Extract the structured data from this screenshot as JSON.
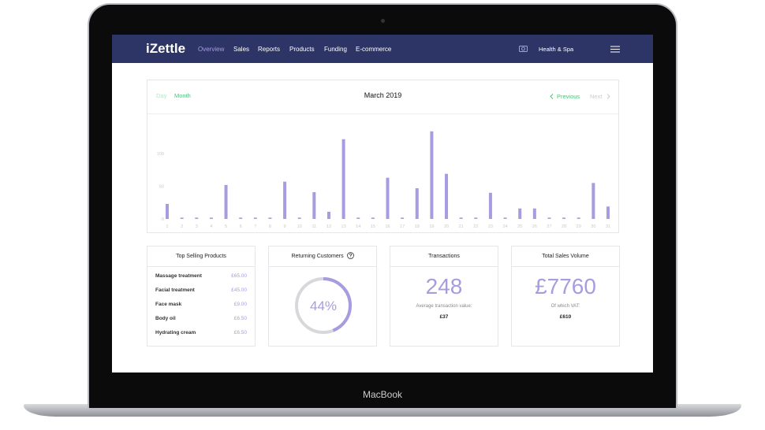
{
  "device": {
    "label": "MacBook"
  },
  "nav": {
    "logo": "iZettle",
    "items": [
      "Overview",
      "Sales",
      "Reports",
      "Products",
      "Funding",
      "E-commerce"
    ],
    "account": "Health & Spa"
  },
  "period": {
    "day": "Day",
    "month": "Month",
    "previous": "Previous",
    "next": "Next"
  },
  "chart_data": [
    {
      "type": "bar",
      "title": "March 2019",
      "categories": [
        "1",
        "2",
        "3",
        "4",
        "5",
        "6",
        "7",
        "8",
        "9",
        "10",
        "11",
        "12",
        "13",
        "14",
        "15",
        "16",
        "17",
        "18",
        "19",
        "20",
        "21",
        "22",
        "23",
        "24",
        "25",
        "26",
        "27",
        "28",
        "29",
        "30",
        "31"
      ],
      "values": [
        23,
        2,
        2,
        2,
        52,
        2,
        2,
        2,
        57,
        2,
        41,
        11,
        122,
        2,
        2,
        63,
        2,
        47,
        134,
        69,
        2,
        2,
        40,
        2,
        16,
        16,
        2,
        2,
        2,
        55,
        19
      ],
      "color": "#a89be0",
      "ylim": [
        0,
        150
      ],
      "yticks": [
        0,
        50,
        100
      ],
      "grid": false
    },
    {
      "type": "donut",
      "title": "Returning Customers",
      "values": [
        44
      ],
      "value_labels": [
        "44%"
      ],
      "color": "#a89be0"
    }
  ],
  "top_products": {
    "title": "Top Selling Products",
    "rows": [
      [
        "Massage treatment",
        "£65.00"
      ],
      [
        "Facial treatment",
        "£45.00"
      ],
      [
        "Face mask",
        "£9.00"
      ],
      [
        "Body oil",
        "£6.50"
      ],
      [
        "Hydrating cream",
        "£6.50"
      ]
    ]
  },
  "transactions": {
    "title": "Transactions",
    "value": "248",
    "caption": "Average transaction value:",
    "sub_value": "£37"
  },
  "total_sales": {
    "title": "Total Sales Volume",
    "value": "£7760",
    "caption": "Of which VAT:",
    "sub_value": "£610"
  }
}
